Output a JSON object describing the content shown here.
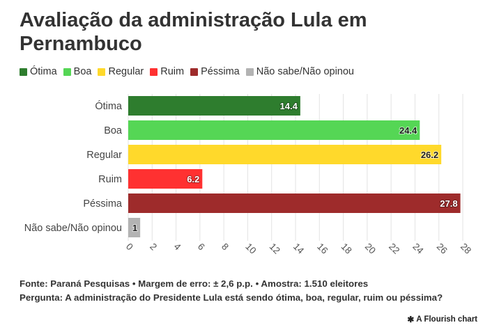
{
  "title": "Avaliação da administração Lula em Pernambuco",
  "legend": [
    {
      "label": "Ótima",
      "color": "#2e7d2e"
    },
    {
      "label": "Boa",
      "color": "#55d655"
    },
    {
      "label": "Regular",
      "color": "#ffd92b"
    },
    {
      "label": "Ruim",
      "color": "#ff3131"
    },
    {
      "label": "Péssima",
      "color": "#9e2b2b"
    },
    {
      "label": "Não sabe/Não opinou",
      "color": "#b3b3b3"
    }
  ],
  "chart_data": {
    "type": "bar",
    "orientation": "horizontal",
    "categories": [
      "Ótima",
      "Boa",
      "Regular",
      "Ruim",
      "Péssima",
      "Não sabe/Não opinou"
    ],
    "values": [
      14.4,
      24.4,
      26.2,
      6.2,
      27.8,
      1
    ],
    "value_labels": [
      "14.4",
      "24.4",
      "26.2",
      "6.2",
      "27.8",
      "1"
    ],
    "colors": [
      "#2e7d2e",
      "#55d655",
      "#ffd92b",
      "#ff3131",
      "#9e2b2b",
      "#b3b3b3"
    ],
    "xlim": [
      0,
      28
    ],
    "xticks": [
      0,
      2,
      4,
      6,
      8,
      10,
      12,
      14,
      16,
      18,
      20,
      22,
      24,
      26,
      28
    ],
    "grid": true
  },
  "footer": {
    "source": "Fonte: Paraná Pesquisas • Margem de erro: ± 2,6 p.p. • Amostra: 1.510 eleitores",
    "question": "Pergunta: A administração do Presidente Lula está sendo ótima, boa, regular, ruim ou péssima?"
  },
  "credit": {
    "icon": "flourish-asterisk-icon",
    "label": "A Flourish chart"
  }
}
